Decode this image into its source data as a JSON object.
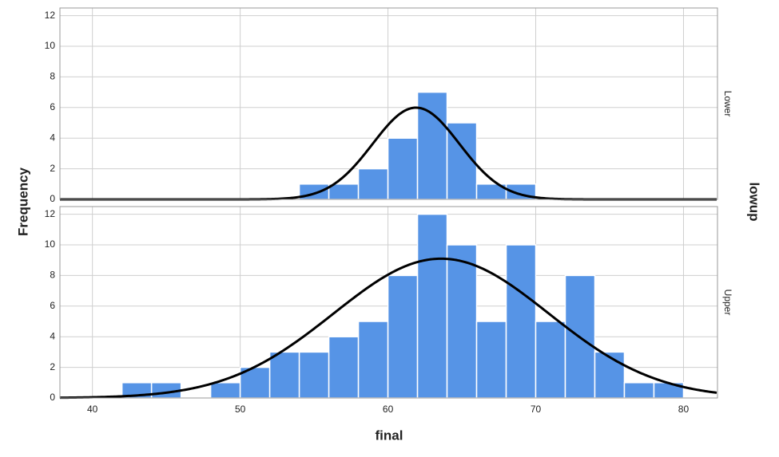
{
  "chart_data": {
    "type": "histogram",
    "xlabel": "final",
    "ylabel": "Frequency",
    "facet_label": "lowup",
    "color": "#5694e6",
    "edge_color": "#ffffff",
    "curve_color": "#000000",
    "grid": true,
    "xlim": [
      37.8,
      82.3
    ],
    "xticks": [
      40,
      50,
      60,
      70,
      80
    ],
    "panels": [
      {
        "label": "Lower",
        "bins": [
          54,
          56,
          58,
          60,
          62,
          64,
          66,
          68,
          70
        ],
        "counts": [
          1,
          1,
          2,
          4,
          7,
          5,
          1,
          1
        ],
        "ylim": [
          0,
          12.5
        ],
        "yticks": [
          0,
          2,
          4,
          6,
          8,
          10,
          12
        ],
        "curve": {
          "mean": 61.9,
          "sd": 2.93,
          "n": 22
        }
      },
      {
        "label": "Upper",
        "bins": [
          42,
          44,
          46,
          48,
          50,
          52,
          54,
          56,
          58,
          60,
          62,
          64,
          66,
          68,
          70,
          72,
          74,
          76,
          78,
          80
        ],
        "counts": [
          1,
          1,
          0,
          1,
          2,
          3,
          3,
          4,
          5,
          8,
          12,
          10,
          5,
          10,
          5,
          8,
          3,
          1,
          1
        ],
        "ylim": [
          0,
          12.5
        ],
        "yticks": [
          0,
          2,
          4,
          6,
          8,
          10,
          12
        ],
        "curve": {
          "mean": 63.6,
          "sd": 7.28,
          "n": 83
        }
      }
    ]
  }
}
